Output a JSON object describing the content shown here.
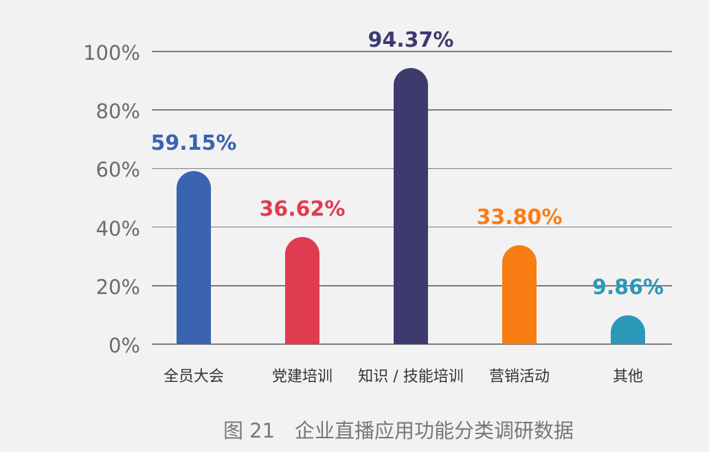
{
  "chart_data": {
    "type": "bar",
    "title": "图 21　企业直播应用功能分类调研数据",
    "xlabel": "",
    "ylabel": "",
    "ylim": [
      0,
      100
    ],
    "yticks": [
      "0%",
      "20%",
      "40%",
      "60%",
      "80%",
      "100%"
    ],
    "grid": true,
    "legend": null,
    "categories": [
      "全员大会",
      "党建培训",
      "知识 / 技能培训",
      "营销活动",
      "其他"
    ],
    "values": [
      59.15,
      36.62,
      94.37,
      33.8,
      9.86
    ],
    "value_labels": [
      "59.15%",
      "36.62%",
      "94.37%",
      "33.80%",
      "9.86%"
    ],
    "colors": [
      "#3a63b0",
      "#e03c4f",
      "#3d3a6e",
      "#f87d13",
      "#2b98b9"
    ]
  },
  "caption": "图 21　企业直播应用功能分类调研数据"
}
